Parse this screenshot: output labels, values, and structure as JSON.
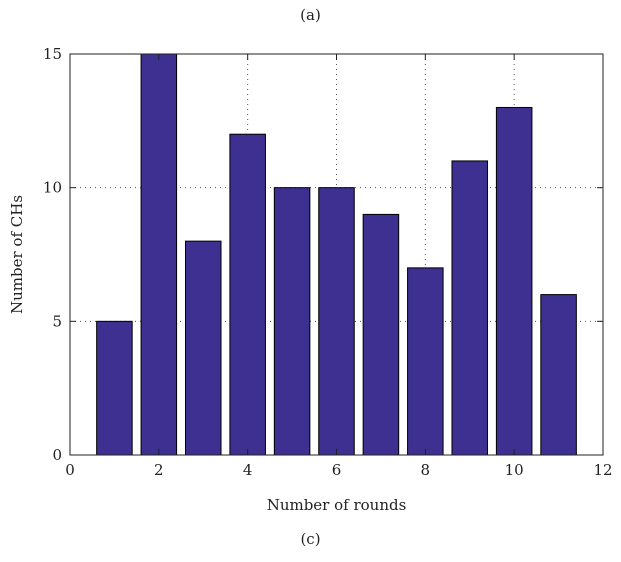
{
  "captions": {
    "top": "(a)",
    "bottom": "(c)"
  },
  "chart_data": {
    "type": "bar",
    "x": [
      1,
      2,
      3,
      4,
      5,
      6,
      7,
      8,
      9,
      10,
      11
    ],
    "values": [
      5,
      15,
      8,
      12,
      10,
      10,
      9,
      7,
      11,
      13,
      6
    ],
    "xlabel": "Number of rounds",
    "ylabel": "Number of CHs",
    "xlim": [
      0,
      12
    ],
    "ylim": [
      0,
      15
    ],
    "xticks": [
      0,
      2,
      4,
      6,
      8,
      10,
      12
    ],
    "yticks": [
      0,
      5,
      10,
      15
    ],
    "grid": true,
    "bar_color": "#3d3090",
    "bar_edge_color": "#000000"
  }
}
